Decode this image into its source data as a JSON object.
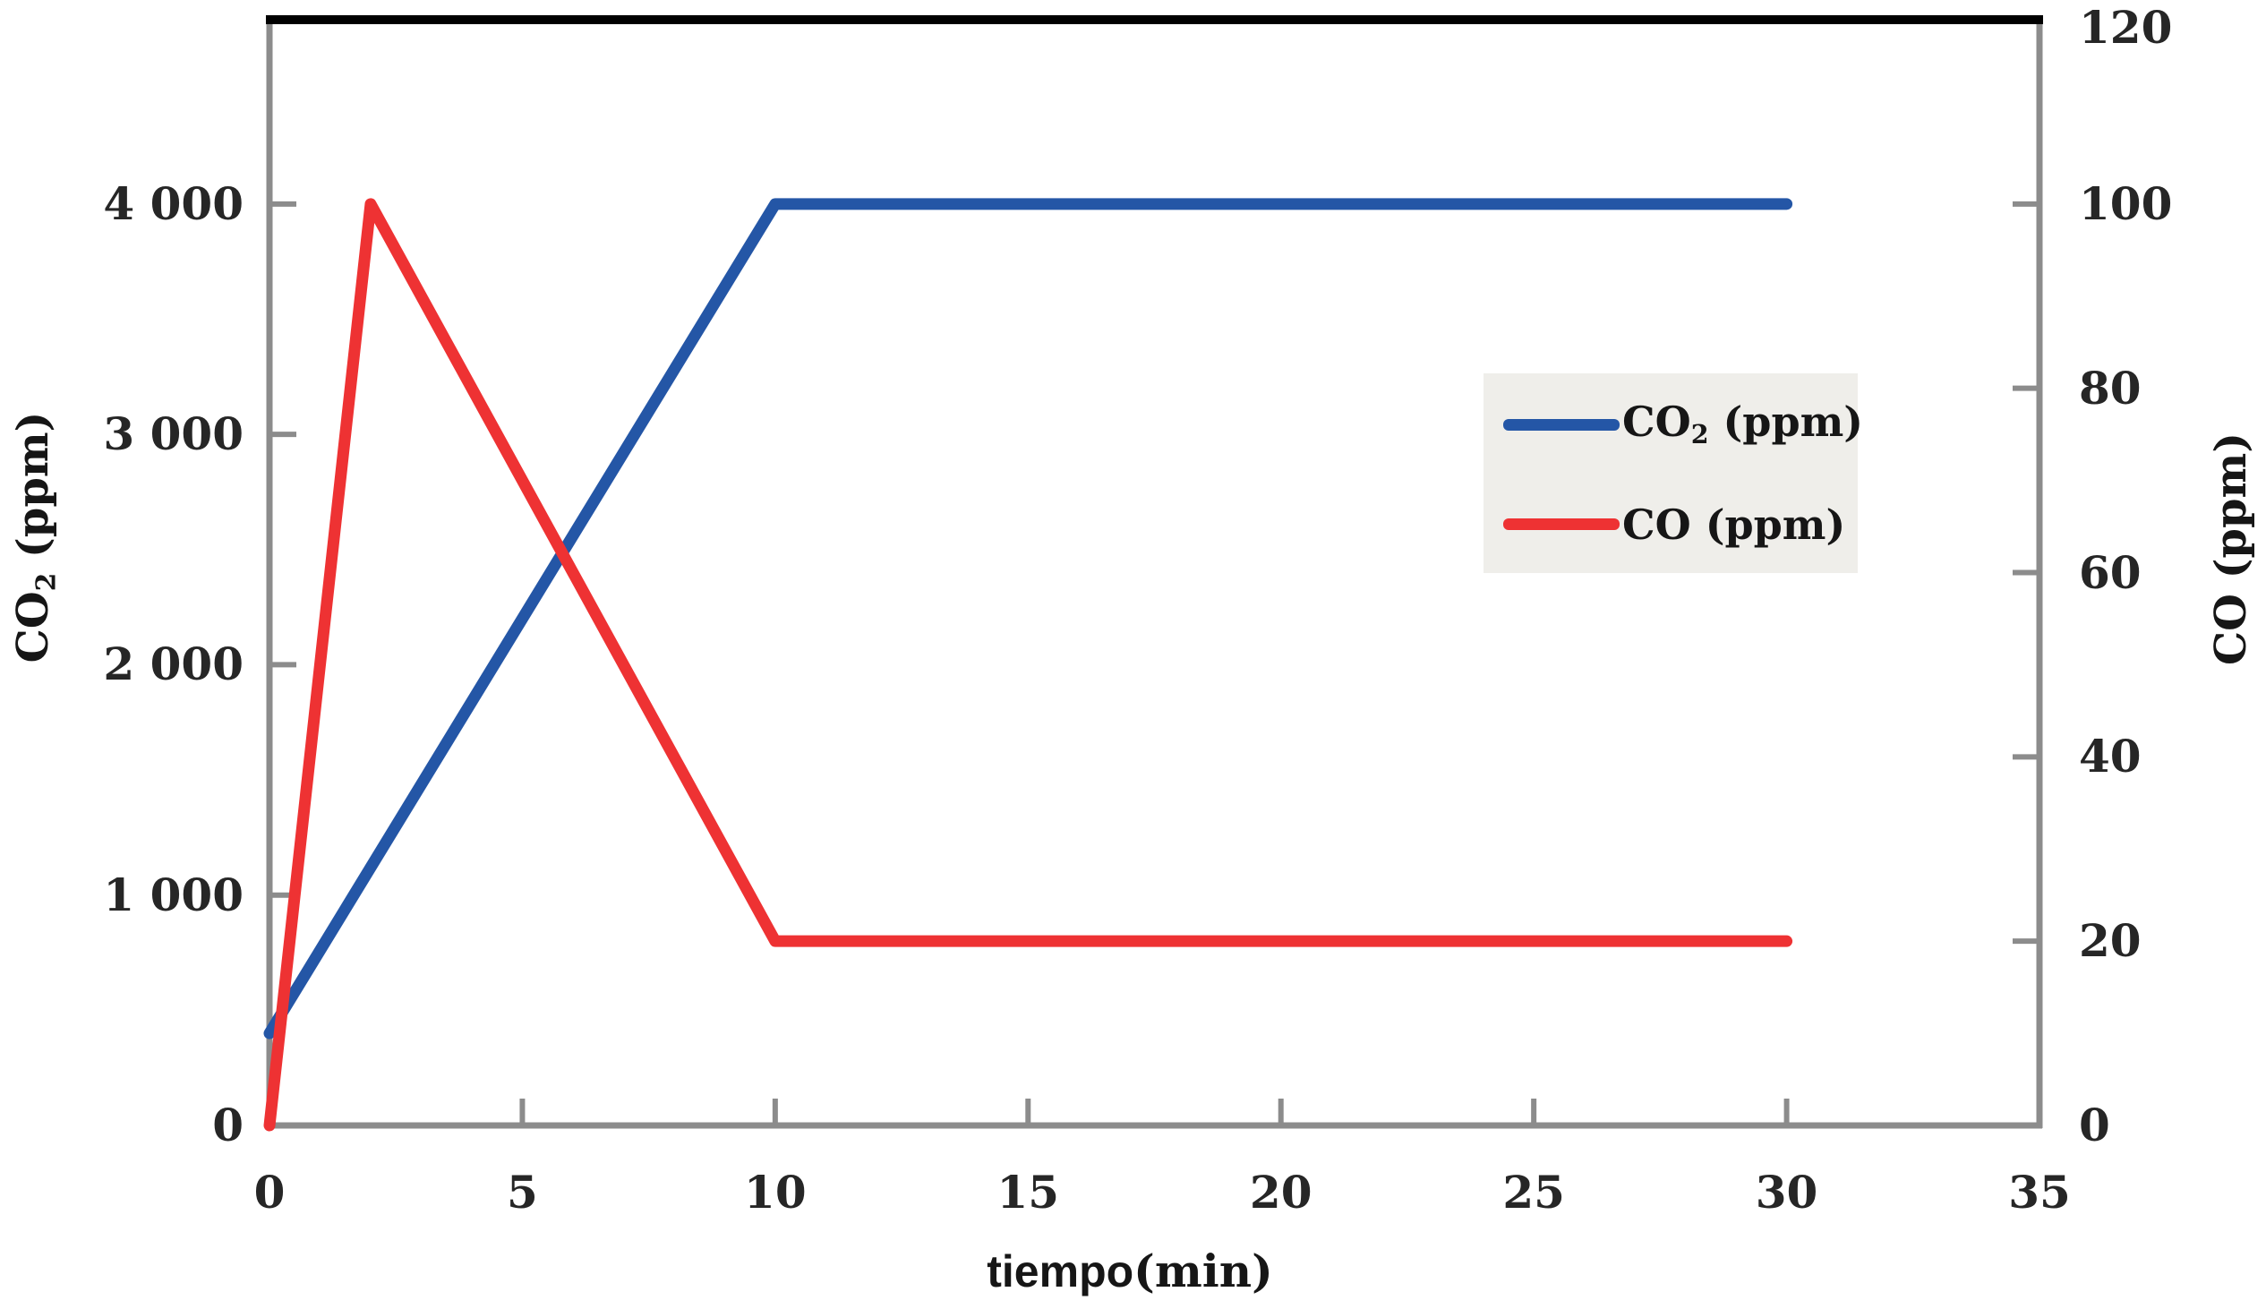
{
  "figure": {
    "background": "#ffffff",
    "frame_color": "#8C8C8C",
    "top_border_color": "#000000",
    "tick_text_color": "#262626"
  },
  "chart_data": {
    "type": "line",
    "title": "",
    "grid": false,
    "legend_position": "right-center",
    "legend_background": "#EFEEEA",
    "x_axis": {
      "label_main": "tiempo",
      "label_unit": "(min)",
      "range": [
        0,
        35
      ],
      "ticks": [
        0,
        5,
        10,
        15,
        20,
        25,
        30,
        35
      ],
      "tick_labels": [
        "0",
        "5",
        "10",
        "15",
        "20",
        "25",
        "30",
        "35"
      ]
    },
    "left_axis": {
      "title_main": "CO",
      "title_sub": "2",
      "title_unit": " (ppm)",
      "title_text": "CO2 (ppm)",
      "range": [
        0,
        4800
      ],
      "ticks": [
        0,
        1000,
        2000,
        3000,
        4000
      ],
      "tick_labels": [
        "0",
        "1 000",
        "2 000",
        "3 000",
        "4 000"
      ]
    },
    "right_axis": {
      "title_main": "CO",
      "title_sub": "",
      "title_unit": " (ppm)",
      "title_text": "CO (ppm)",
      "range": [
        0,
        120
      ],
      "ticks": [
        0,
        20,
        40,
        60,
        80,
        100,
        120
      ],
      "tick_labels": [
        "0",
        "20",
        "40",
        "60",
        "80",
        "100",
        "120"
      ]
    },
    "series": [
      {
        "name": "CO2 (ppm)",
        "legend_main": "CO",
        "legend_sub": "2",
        "legend_unit": " (ppm)",
        "color": "#2456A6",
        "axis": "left",
        "points": [
          [
            0,
            400
          ],
          [
            10,
            4000
          ],
          [
            30,
            4000
          ]
        ]
      },
      {
        "name": "CO (ppm)",
        "legend_main": "CO",
        "legend_sub": "",
        "legend_unit": " (ppm)",
        "color": "#EE3233",
        "axis": "right",
        "points": [
          [
            0,
            0
          ],
          [
            2,
            100
          ],
          [
            10,
            20
          ],
          [
            30,
            20
          ]
        ]
      }
    ]
  }
}
